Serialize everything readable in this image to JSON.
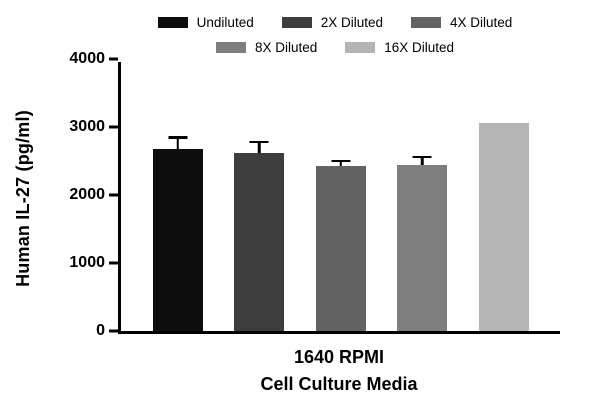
{
  "chart_data": {
    "type": "bar",
    "title": "",
    "ylabel": "Human IL-27 (pg/ml)",
    "xlabel_line1": "1640 RPMI",
    "xlabel_line2": "Cell Culture Media",
    "category": "1640 RPMI Cell Culture Media",
    "ylim": [
      0,
      4000
    ],
    "yticks": [
      0,
      1000,
      2000,
      3000,
      4000
    ],
    "grid": false,
    "legend_position": "top",
    "series": [
      {
        "name": "Undiluted",
        "value": 2680,
        "error": 150,
        "color": "#0d0d0d"
      },
      {
        "name": "2X Diluted",
        "value": 2620,
        "error": 140,
        "color": "#3d3d3d"
      },
      {
        "name": "4X Diluted",
        "value": 2430,
        "error": 50,
        "color": "#636363"
      },
      {
        "name": "8X Diluted",
        "value": 2440,
        "error": 100,
        "color": "#7e7e7e"
      },
      {
        "name": "16X Diluted",
        "value": 3060,
        "error": 0,
        "color": "#b4b4b4"
      }
    ]
  }
}
